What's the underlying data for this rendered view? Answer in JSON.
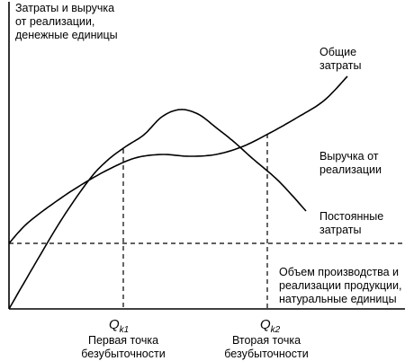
{
  "chart_data": {
    "type": "line",
    "ylabel_lines": [
      "Затраты и выручка",
      "от реализации,",
      "денежные единицы"
    ],
    "xlabel_lines": [
      "Объем производства и",
      "реализации продукции,",
      "натуральные единицы"
    ],
    "series": [
      {
        "name_lines": [
          "Общие",
          "затраты"
        ],
        "x": [
          0,
          20,
          50,
          80,
          110,
          140,
          170,
          200,
          230,
          260,
          290,
          320,
          350,
          376
        ],
        "y": [
          73,
          95,
          118,
          138,
          155,
          168,
          172,
          170,
          172,
          181,
          196,
          213,
          232,
          259
        ]
      },
      {
        "name_lines": [
          "Выручка от",
          "реализации"
        ],
        "x": [
          0,
          30,
          60,
          90,
          110,
          130,
          150,
          170,
          190,
          210,
          230,
          250,
          270,
          300,
          330
        ],
        "y": [
          0,
          52,
          102,
          145,
          166,
          181,
          194,
          214,
          222,
          217,
          202,
          186,
          168,
          142,
          109
        ]
      }
    ],
    "fixed_costs": {
      "name_lines": [
        "Постоянные",
        "затраты"
      ],
      "value": 73
    },
    "break_even_points": [
      {
        "symbol": "Q",
        "sub": "k1",
        "caption_lines": [
          "Первая точка",
          "безубыточности"
        ],
        "x": 127,
        "y": 178
      },
      {
        "symbol": "Q",
        "sub": "k2",
        "caption_lines": [
          "Вторая точка",
          "безубыточности"
        ],
        "x": 287,
        "y": 195
      }
    ],
    "xlim": [
      0,
      440
    ],
    "ylim": [
      0,
      340
    ],
    "grid": false,
    "legend": "none"
  }
}
